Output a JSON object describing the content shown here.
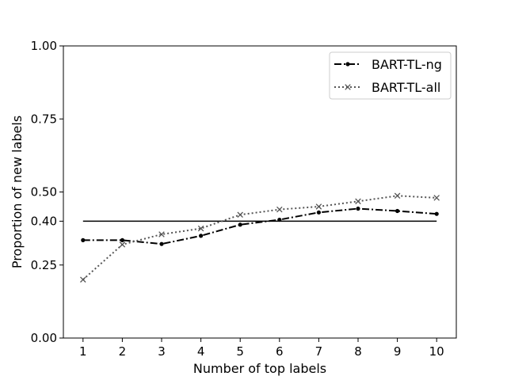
{
  "chart_data": {
    "type": "line",
    "title": "",
    "xlabel": "Number of top labels",
    "ylabel": "Proportion of new labels",
    "x": [
      1,
      2,
      3,
      4,
      5,
      6,
      7,
      8,
      9,
      10
    ],
    "x_tick_labels": [
      "1",
      "2",
      "3",
      "4",
      "5",
      "6",
      "7",
      "8",
      "9",
      "10"
    ],
    "y_ticks": [
      0.0,
      0.25,
      0.4,
      0.5,
      0.75,
      1.0
    ],
    "y_tick_labels": [
      "0.00",
      "0.25",
      "0.40",
      "0.50",
      "0.75",
      "1.00"
    ],
    "xlim": [
      0.5,
      10.5
    ],
    "ylim": [
      0,
      1
    ],
    "grid": false,
    "legend_position": "top-right",
    "series": [
      {
        "name": "BART-TL-ng",
        "color": "#000000",
        "line_style": "dashdot",
        "marker": "dot",
        "values": [
          0.335,
          0.335,
          0.322,
          0.35,
          0.388,
          0.405,
          0.43,
          0.443,
          0.435,
          0.425
        ]
      },
      {
        "name": "BART-TL-all",
        "color": "#555555",
        "line_style": "dotted",
        "marker": "x",
        "values": [
          0.2,
          0.32,
          0.355,
          0.375,
          0.422,
          0.44,
          0.45,
          0.468,
          0.487,
          0.48
        ]
      }
    ],
    "reference_line": {
      "y": 0.4,
      "x_start": 1,
      "x_end": 10,
      "color": "#000000"
    }
  }
}
